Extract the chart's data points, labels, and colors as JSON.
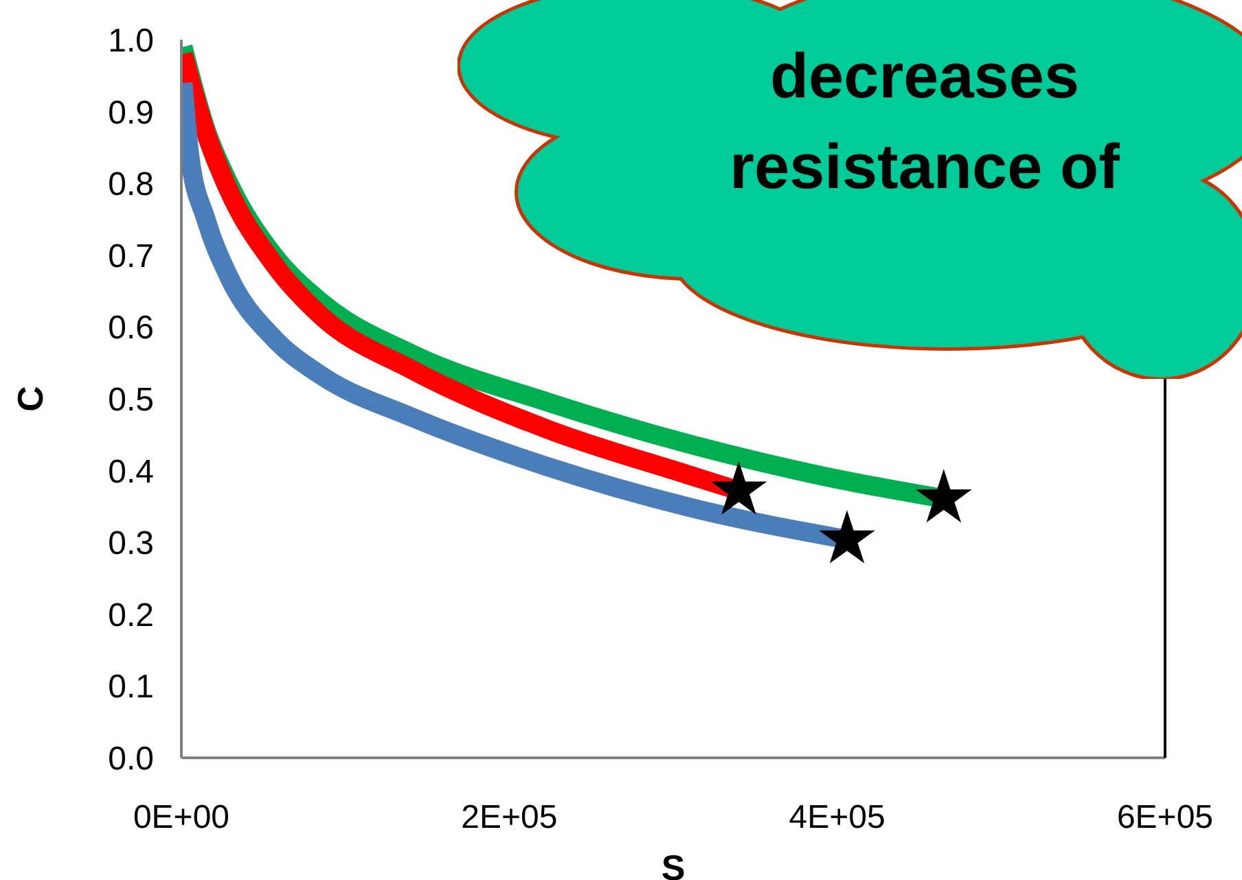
{
  "chart_data": {
    "type": "line",
    "xlabel": "S",
    "ylabel": "C",
    "annotations": [
      "decreases",
      "resistance of"
    ],
    "xlim": [
      0,
      600000
    ],
    "xticks": [
      {
        "value": 0,
        "label": "0E+00"
      },
      {
        "value": 200000,
        "label": "2E+05"
      },
      {
        "value": 400000,
        "label": "4E+05"
      },
      {
        "value": 600000,
        "label": "6E+05"
      }
    ],
    "ylim": [
      0,
      1
    ],
    "yticks": [
      {
        "value": 0,
        "label": "0.0"
      },
      0.1,
      0.2,
      0.3,
      0.4,
      0.5,
      0.6,
      0.7,
      0.8,
      0.9,
      {
        "value": 1,
        "label": "1.0"
      }
    ],
    "series": [
      {
        "color": "#00b050",
        "marker": "none",
        "x": [
          1000,
          15000,
          29000,
          57000,
          85000,
          141000,
          224000,
          308000,
          392000,
          465000
        ],
        "values": [
          0.99,
          0.875,
          0.8,
          0.698,
          0.635,
          0.562,
          0.495,
          0.438,
          0.392,
          0.361
        ]
      },
      {
        "color": "#ff0000",
        "marker": "none",
        "x": [
          1000,
          15000,
          29000,
          57000,
          85000,
          141000,
          224000,
          308000,
          340000
        ],
        "values": [
          0.98,
          0.87,
          0.79,
          0.686,
          0.616,
          0.54,
          0.457,
          0.395,
          0.372
        ]
      },
      {
        "color": "#4a7ebb",
        "marker": "none",
        "x": [
          1000,
          5000,
          15000,
          29000,
          57000,
          85000,
          141000,
          224000,
          308000,
          406000
        ],
        "values": [
          0.94,
          0.84,
          0.75,
          0.67,
          0.583,
          0.533,
          0.474,
          0.405,
          0.35,
          0.304
        ]
      },
      {
        "type": "scatter",
        "color": "#000000",
        "marker": "star",
        "x": [
          340000,
          406000,
          465000
        ],
        "values": [
          0.372,
          0.304,
          0.361
        ]
      }
    ]
  }
}
